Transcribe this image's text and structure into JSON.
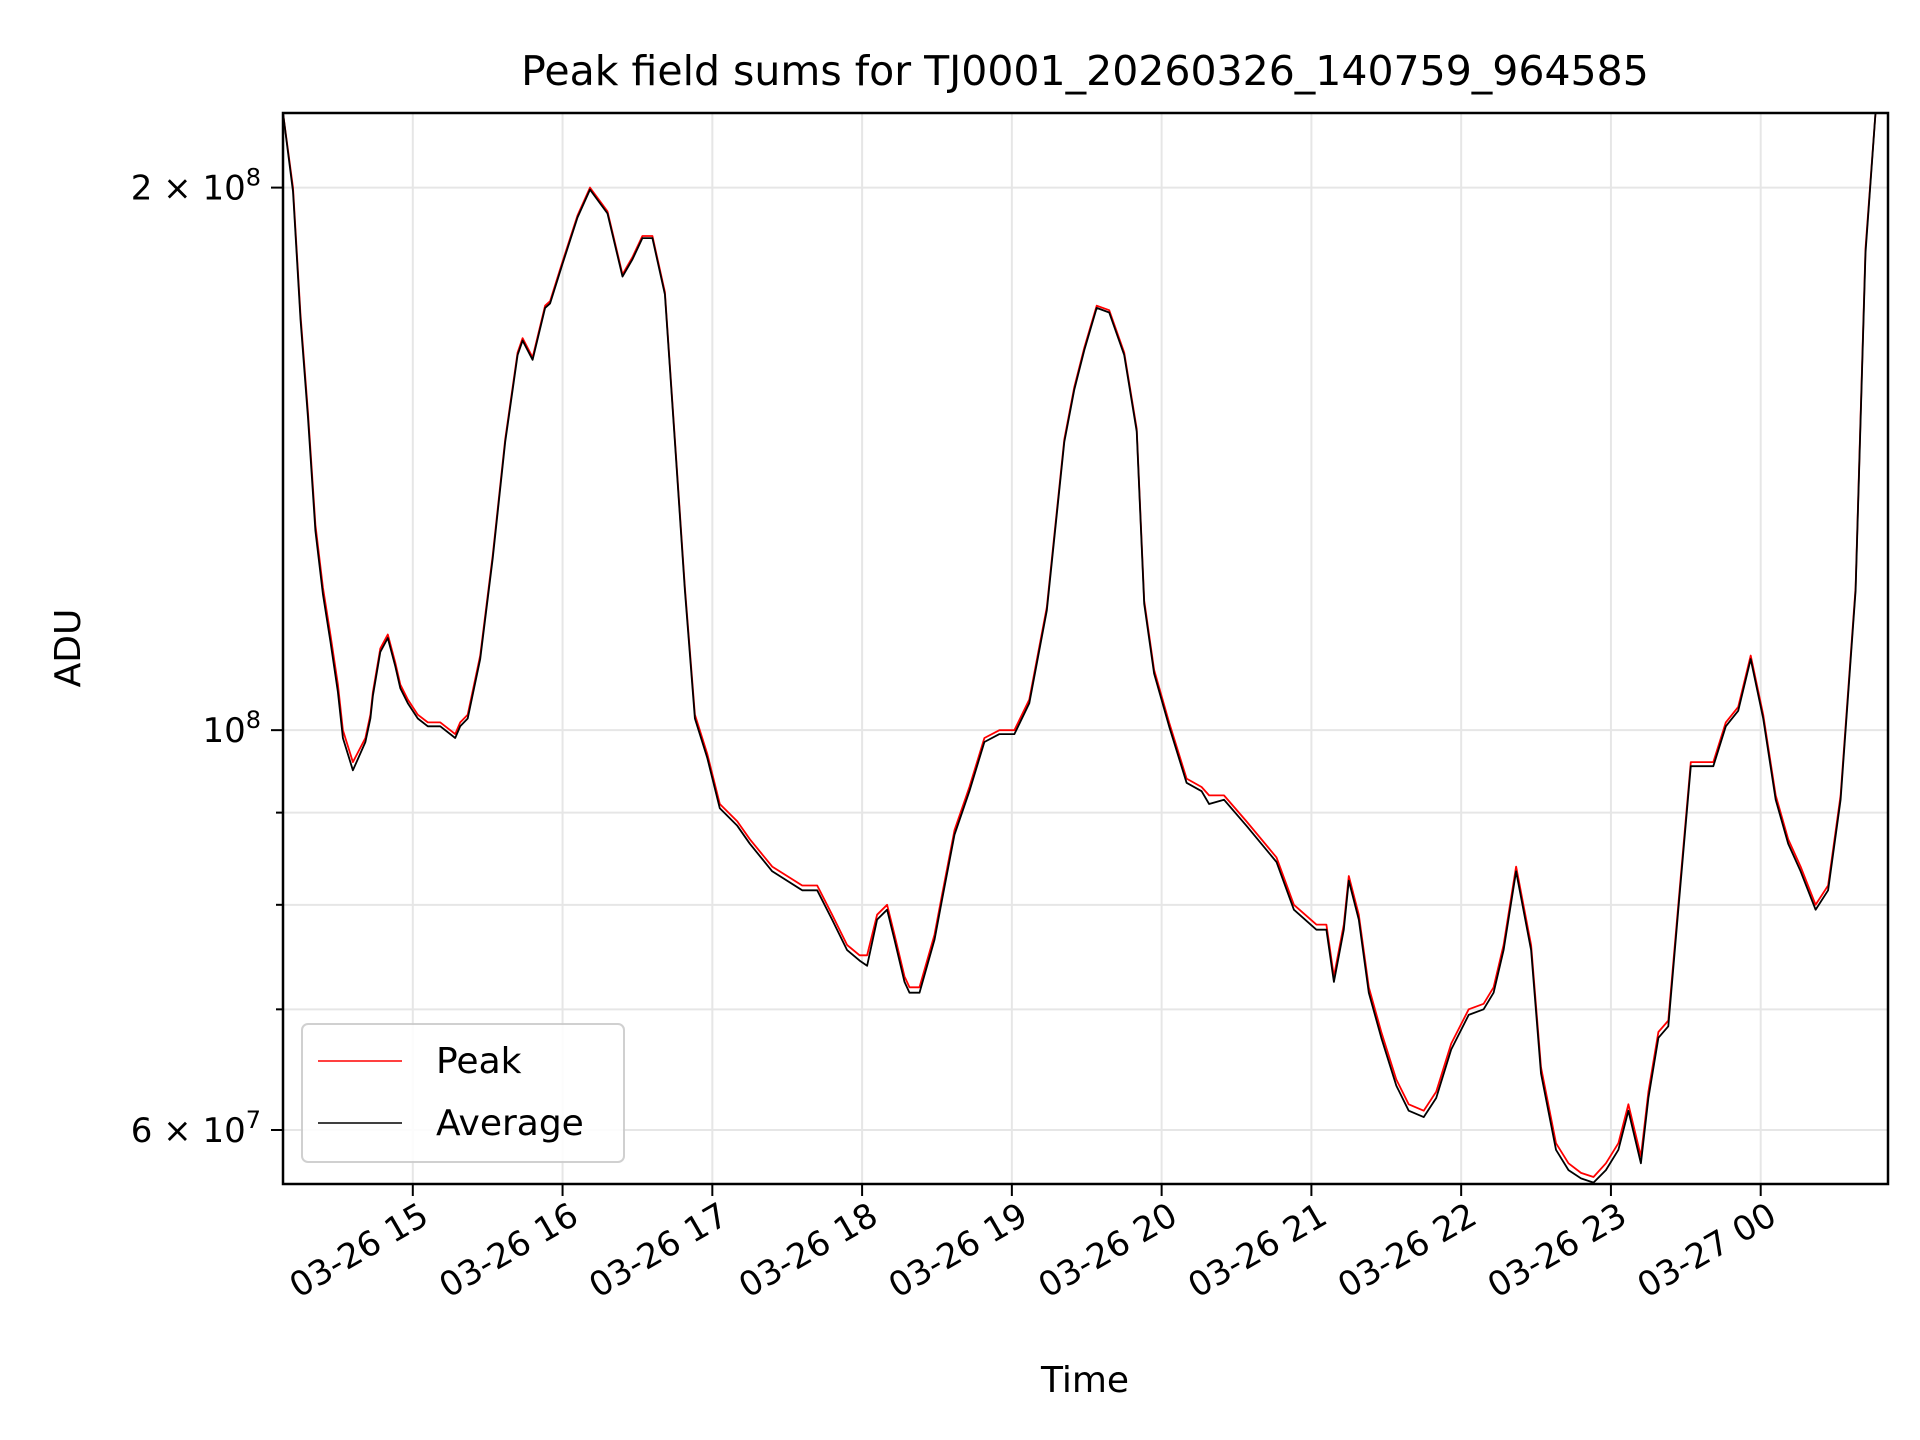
{
  "chart_data": {
    "type": "line",
    "title": "Peak field sums for TJ0001_20260326_140759_964585",
    "xlabel": "Time",
    "ylabel": "ADU",
    "x_ticks": [
      "03-26 15",
      "03-26 16",
      "03-26 17",
      "03-26 18",
      "03-26 19",
      "03-26 20",
      "03-26 21",
      "03-26 22",
      "03-26 23",
      "03-27 00"
    ],
    "y_ticks": [
      {
        "value": 60000000,
        "label": "6 × 10^7"
      },
      {
        "value": 100000000,
        "label": "10^8"
      },
      {
        "value": 200000000,
        "label": "2 × 10^8"
      }
    ],
    "y_scale": "log",
    "y_minor_ticks": [
      70000000,
      80000000,
      90000000
    ],
    "xlim": [
      "2026-03-26 14:08",
      "2026-03-27 00:51"
    ],
    "ylim": [
      56000000,
      220000000
    ],
    "grid": true,
    "legend_position": "lower-left",
    "series": [
      {
        "name": "Peak",
        "color": "#ff0000",
        "x": [
          "2026-03-26 14:08",
          "2026-03-26 14:12",
          "2026-03-26 14:15",
          "2026-03-26 14:18",
          "2026-03-26 14:21",
          "2026-03-26 14:24",
          "2026-03-26 14:27",
          "2026-03-26 14:30",
          "2026-03-26 14:32",
          "2026-03-26 14:36",
          "2026-03-26 14:41",
          "2026-03-26 14:43",
          "2026-03-26 14:44",
          "2026-03-26 14:47",
          "2026-03-26 14:50",
          "2026-03-26 14:53",
          "2026-03-26 14:55",
          "2026-03-26 14:58",
          "2026-03-26 15:02",
          "2026-03-26 15:06",
          "2026-03-26 15:11",
          "2026-03-26 15:17",
          "2026-03-26 15:19",
          "2026-03-26 15:22",
          "2026-03-26 15:27",
          "2026-03-26 15:32",
          "2026-03-26 15:37",
          "2026-03-26 15:42",
          "2026-03-26 15:44",
          "2026-03-26 15:48",
          "2026-03-26 15:53",
          "2026-03-26 15:55",
          "2026-03-26 16:00",
          "2026-03-26 16:06",
          "2026-03-26 16:11",
          "2026-03-26 16:18",
          "2026-03-26 16:24",
          "2026-03-26 16:28",
          "2026-03-26 16:32",
          "2026-03-26 16:36",
          "2026-03-26 16:41",
          "2026-03-26 16:45",
          "2026-03-26 16:49",
          "2026-03-26 16:53",
          "2026-03-26 16:58",
          "2026-03-26 17:03",
          "2026-03-26 17:10",
          "2026-03-26 17:15",
          "2026-03-26 17:24",
          "2026-03-26 17:36",
          "2026-03-26 17:42",
          "2026-03-26 17:48",
          "2026-03-26 17:54",
          "2026-03-26 17:59",
          "2026-03-26 18:02",
          "2026-03-26 18:06",
          "2026-03-26 18:10",
          "2026-03-26 18:13",
          "2026-03-26 18:17",
          "2026-03-26 18:19",
          "2026-03-26 18:23",
          "2026-03-26 18:29",
          "2026-03-26 18:32",
          "2026-03-26 18:37",
          "2026-03-26 18:43",
          "2026-03-26 18:49",
          "2026-03-26 18:55",
          "2026-03-26 19:01",
          "2026-03-26 19:07",
          "2026-03-26 19:14",
          "2026-03-26 19:21",
          "2026-03-26 19:25",
          "2026-03-26 19:29",
          "2026-03-26 19:34",
          "2026-03-26 19:39",
          "2026-03-26 19:45",
          "2026-03-26 19:50",
          "2026-03-26 19:53",
          "2026-03-26 19:57",
          "2026-03-26 20:03",
          "2026-03-26 20:10",
          "2026-03-26 20:16",
          "2026-03-26 20:19",
          "2026-03-26 20:25",
          "2026-03-26 20:34",
          "2026-03-26 20:46",
          "2026-03-26 20:53",
          "2026-03-26 21:02",
          "2026-03-26 21:06",
          "2026-03-26 21:09",
          "2026-03-26 21:13",
          "2026-03-26 21:15",
          "2026-03-26 21:19",
          "2026-03-26 21:23",
          "2026-03-26 21:28",
          "2026-03-26 21:34",
          "2026-03-26 21:39",
          "2026-03-26 21:45",
          "2026-03-26 21:50",
          "2026-03-26 21:56",
          "2026-03-26 22:03",
          "2026-03-26 22:09",
          "2026-03-26 22:13",
          "2026-03-26 22:17",
          "2026-03-26 22:22",
          "2026-03-26 22:28",
          "2026-03-26 22:32",
          "2026-03-26 22:38",
          "2026-03-26 22:43",
          "2026-03-26 22:48",
          "2026-03-26 22:53",
          "2026-03-26 22:58",
          "2026-03-26 23:03",
          "2026-03-26 23:07",
          "2026-03-26 23:12",
          "2026-03-26 23:15",
          "2026-03-26 23:19",
          "2026-03-26 23:23",
          "2026-03-26 23:27",
          "2026-03-26 23:32",
          "2026-03-26 23:37",
          "2026-03-26 23:41",
          "2026-03-26 23:46",
          "2026-03-26 23:51",
          "2026-03-26 23:56",
          "2026-03-27 00:01",
          "2026-03-27 00:06",
          "2026-03-27 00:11",
          "2026-03-27 00:16",
          "2026-03-27 00:22",
          "2026-03-27 00:27",
          "2026-03-27 00:32",
          "2026-03-27 00:38",
          "2026-03-27 00:42",
          "2026-03-27 00:46",
          "2026-03-27 00:51"
        ],
        "y": [
          220000000,
          200000000,
          170000000,
          150000000,
          130000000,
          120000000,
          113000000,
          106000000,
          100000000,
          96000000,
          99000000,
          102000000,
          105000000,
          111000000,
          113000000,
          109000000,
          106000000,
          104000000,
          102000000,
          101000000,
          101000000,
          99500000,
          101000000,
          102000000,
          110000000,
          125000000,
          145000000,
          162000000,
          165000000,
          161000000,
          172000000,
          173000000,
          182000000,
          193000000,
          200000000,
          194000000,
          179000000,
          183000000,
          188000000,
          188000000,
          175000000,
          145000000,
          120000000,
          102000000,
          97000000,
          91000000,
          89000000,
          87000000,
          84000000,
          82000000,
          82000000,
          79000000,
          76000000,
          75000000,
          75000000,
          79000000,
          80000000,
          77000000,
          73000000,
          72000000,
          72000000,
          77000000,
          81000000,
          88000000,
          93000000,
          99000000,
          100000000,
          100000000,
          104000000,
          117000000,
          145000000,
          155000000,
          163000000,
          172000000,
          171000000,
          162000000,
          147000000,
          118000000,
          108000000,
          101000000,
          94000000,
          93000000,
          92000000,
          92000000,
          89000000,
          85000000,
          80000000,
          78000000,
          78000000,
          73000000,
          78000000,
          83000000,
          79000000,
          72000000,
          68000000,
          64000000,
          62000000,
          61500000,
          63000000,
          67000000,
          70000000,
          70500000,
          72000000,
          76000000,
          84000000,
          76000000,
          65000000,
          59000000,
          57500000,
          56800000,
          56500000,
          57500000,
          59000000,
          62000000,
          58000000,
          63000000,
          68000000,
          69000000,
          80000000,
          96000000,
          96000000,
          96000000,
          101000000,
          103000000,
          110000000,
          102000000,
          92000000,
          87000000,
          84000000,
          80000000,
          82000000,
          92000000,
          120000000,
          185000000,
          220000000,
          220000000
        ]
      },
      {
        "name": "Average",
        "color": "#000000",
        "x": [
          "2026-03-26 14:08",
          "2026-03-26 14:12",
          "2026-03-26 14:15",
          "2026-03-26 14:18",
          "2026-03-26 14:21",
          "2026-03-26 14:24",
          "2026-03-26 14:27",
          "2026-03-26 14:30",
          "2026-03-26 14:32",
          "2026-03-26 14:36",
          "2026-03-26 14:41",
          "2026-03-26 14:43",
          "2026-03-26 14:44",
          "2026-03-26 14:47",
          "2026-03-26 14:50",
          "2026-03-26 14:53",
          "2026-03-26 14:55",
          "2026-03-26 14:58",
          "2026-03-26 15:02",
          "2026-03-26 15:06",
          "2026-03-26 15:11",
          "2026-03-26 15:17",
          "2026-03-26 15:19",
          "2026-03-26 15:22",
          "2026-03-26 15:27",
          "2026-03-26 15:32",
          "2026-03-26 15:37",
          "2026-03-26 15:42",
          "2026-03-26 15:44",
          "2026-03-26 15:48",
          "2026-03-26 15:53",
          "2026-03-26 15:55",
          "2026-03-26 16:00",
          "2026-03-26 16:06",
          "2026-03-26 16:11",
          "2026-03-26 16:18",
          "2026-03-26 16:24",
          "2026-03-26 16:28",
          "2026-03-26 16:32",
          "2026-03-26 16:36",
          "2026-03-26 16:41",
          "2026-03-26 16:45",
          "2026-03-26 16:49",
          "2026-03-26 16:53",
          "2026-03-26 16:58",
          "2026-03-26 17:03",
          "2026-03-26 17:10",
          "2026-03-26 17:15",
          "2026-03-26 17:24",
          "2026-03-26 17:36",
          "2026-03-26 17:42",
          "2026-03-26 17:48",
          "2026-03-26 17:54",
          "2026-03-26 17:59",
          "2026-03-26 18:02",
          "2026-03-26 18:06",
          "2026-03-26 18:10",
          "2026-03-26 18:13",
          "2026-03-26 18:17",
          "2026-03-26 18:19",
          "2026-03-26 18:23",
          "2026-03-26 18:29",
          "2026-03-26 18:32",
          "2026-03-26 18:37",
          "2026-03-26 18:43",
          "2026-03-26 18:49",
          "2026-03-26 18:55",
          "2026-03-26 19:01",
          "2026-03-26 19:07",
          "2026-03-26 19:14",
          "2026-03-26 19:21",
          "2026-03-26 19:25",
          "2026-03-26 19:29",
          "2026-03-26 19:34",
          "2026-03-26 19:39",
          "2026-03-26 19:45",
          "2026-03-26 19:50",
          "2026-03-26 19:53",
          "2026-03-26 19:57",
          "2026-03-26 20:03",
          "2026-03-26 20:10",
          "2026-03-26 20:16",
          "2026-03-26 20:19",
          "2026-03-26 20:25",
          "2026-03-26 20:34",
          "2026-03-26 20:46",
          "2026-03-26 20:53",
          "2026-03-26 21:02",
          "2026-03-26 21:06",
          "2026-03-26 21:09",
          "2026-03-26 21:13",
          "2026-03-26 21:15",
          "2026-03-26 21:19",
          "2026-03-26 21:23",
          "2026-03-26 21:28",
          "2026-03-26 21:34",
          "2026-03-26 21:39",
          "2026-03-26 21:45",
          "2026-03-26 21:50",
          "2026-03-26 21:56",
          "2026-03-26 22:03",
          "2026-03-26 22:09",
          "2026-03-26 22:13",
          "2026-03-26 22:17",
          "2026-03-26 22:22",
          "2026-03-26 22:28",
          "2026-03-26 22:32",
          "2026-03-26 22:38",
          "2026-03-26 22:43",
          "2026-03-26 22:48",
          "2026-03-26 22:53",
          "2026-03-26 22:58",
          "2026-03-26 23:03",
          "2026-03-26 23:07",
          "2026-03-26 23:12",
          "2026-03-26 23:15",
          "2026-03-26 23:19",
          "2026-03-26 23:23",
          "2026-03-26 23:27",
          "2026-03-26 23:32",
          "2026-03-26 23:37",
          "2026-03-26 23:41",
          "2026-03-26 23:46",
          "2026-03-26 23:51",
          "2026-03-26 23:56",
          "2026-03-27 00:01",
          "2026-03-27 00:06",
          "2026-03-27 00:11",
          "2026-03-27 00:16",
          "2026-03-27 00:22",
          "2026-03-27 00:27",
          "2026-03-27 00:32",
          "2026-03-27 00:38",
          "2026-03-27 00:42",
          "2026-03-27 00:46",
          "2026-03-27 00:51"
        ],
        "y": [
          220000000,
          199000000,
          169000000,
          149000000,
          129000000,
          119000000,
          112000000,
          105000000,
          99000000,
          95000000,
          98500000,
          101500000,
          104500000,
          110500000,
          112500000,
          108500000,
          105500000,
          103500000,
          101500000,
          100500000,
          100500000,
          99000000,
          100500000,
          101500000,
          109500000,
          124500000,
          144500000,
          161500000,
          164500000,
          160500000,
          171500000,
          172500000,
          181500000,
          192500000,
          199500000,
          193500000,
          178500000,
          182500000,
          187500000,
          187500000,
          174500000,
          144500000,
          119500000,
          101500000,
          96500000,
          90500000,
          88500000,
          86500000,
          83500000,
          81500000,
          81500000,
          78500000,
          75500000,
          74500000,
          74000000,
          78500000,
          79500000,
          76500000,
          72500000,
          71500000,
          71500000,
          76500000,
          80500000,
          87500000,
          92500000,
          98500000,
          99500000,
          99500000,
          103500000,
          116500000,
          144500000,
          154500000,
          162500000,
          171500000,
          170500000,
          161500000,
          146500000,
          117500000,
          107500000,
          100500000,
          93500000,
          92500000,
          91000000,
          91500000,
          88500000,
          84500000,
          79500000,
          77500000,
          77500000,
          72500000,
          77500000,
          82500000,
          78500000,
          71500000,
          67500000,
          63500000,
          61500000,
          61000000,
          62500000,
          66500000,
          69500000,
          70000000,
          71500000,
          75500000,
          83500000,
          75500000,
          64500000,
          58500000,
          57000000,
          56400000,
          56100000,
          57000000,
          58500000,
          61500000,
          57500000,
          62500000,
          67500000,
          68500000,
          79500000,
          95500000,
          95500000,
          95500000,
          100500000,
          102500000,
          109500000,
          101500000,
          91500000,
          86500000,
          83500000,
          79500000,
          81500000,
          91500000,
          119500000,
          184000000,
          220000000,
          220000000
        ]
      }
    ]
  }
}
